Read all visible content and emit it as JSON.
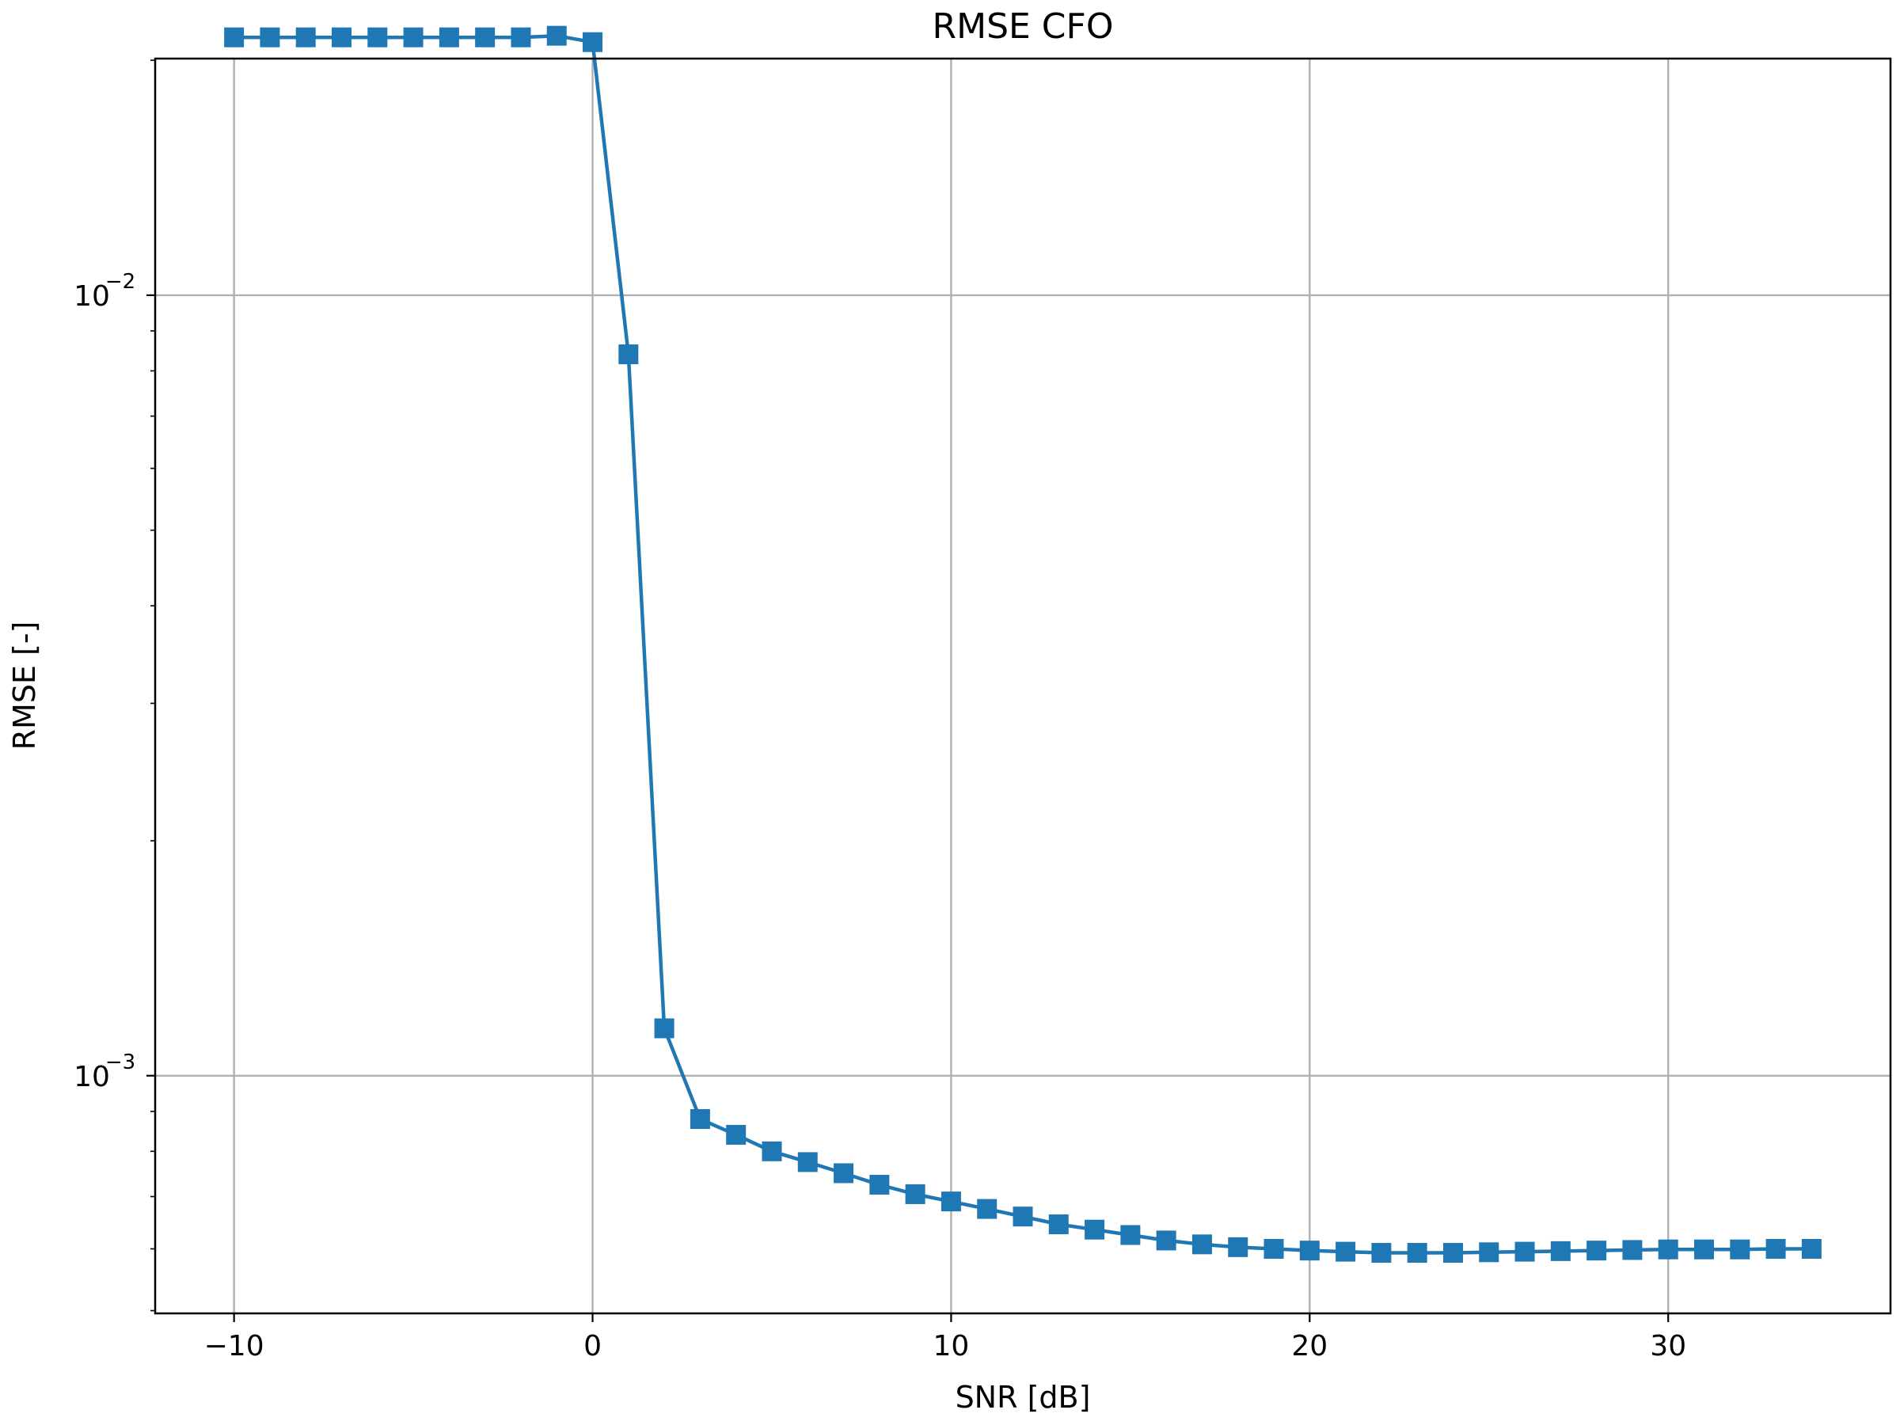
{
  "chart_data": {
    "type": "line",
    "title": "RMSE CFO",
    "xlabel": "SNR [dB]",
    "ylabel": "RMSE [-]",
    "x_scale": "linear",
    "y_scale": "log",
    "xlim": [
      -12.2,
      36.2
    ],
    "ylim": [
      0.000496,
      0.0201
    ],
    "grid": true,
    "x_ticks": [
      {
        "value": -10,
        "label": "−10"
      },
      {
        "value": 0,
        "label": "0"
      },
      {
        "value": 10,
        "label": "10"
      },
      {
        "value": 20,
        "label": "20"
      },
      {
        "value": 30,
        "label": "30"
      }
    ],
    "y_ticks": [
      {
        "value": 0.001,
        "base": "10",
        "exp": "−3"
      },
      {
        "value": 0.01,
        "base": "10",
        "exp": "−2"
      }
    ],
    "y_minor_ticks": [
      0.0005,
      0.0006,
      0.0007,
      0.0008,
      0.0009,
      0.002,
      0.003,
      0.004,
      0.005,
      0.006,
      0.007,
      0.008,
      0.009,
      0.02
    ],
    "color": "#1f77b4",
    "marker": "square",
    "series": [
      {
        "x": [
          -10,
          -9,
          -8,
          -7,
          -6,
          -5,
          -4,
          -3,
          -2,
          -1,
          0,
          1,
          2,
          3,
          4,
          5,
          6,
          7,
          8,
          9,
          10,
          11,
          12,
          13,
          14,
          15,
          16,
          17,
          18,
          19,
          20,
          21,
          22,
          23,
          24,
          25,
          26,
          27,
          28,
          29,
          30,
          31,
          32,
          33,
          34
        ],
        "y": [
          0.0214,
          0.0214,
          0.0214,
          0.0214,
          0.0214,
          0.0214,
          0.0214,
          0.0214,
          0.0214,
          0.0215,
          0.0211,
          0.0084,
          0.00115,
          0.00088,
          0.00084,
          0.0008,
          0.000775,
          0.00075,
          0.000725,
          0.000705,
          0.00069,
          0.000675,
          0.00066,
          0.000645,
          0.000635,
          0.000625,
          0.000615,
          0.000608,
          0.000603,
          0.0006,
          0.000597,
          0.000595,
          0.000593,
          0.000593,
          0.000593,
          0.000594,
          0.000595,
          0.000596,
          0.000597,
          0.000598,
          0.000599,
          0.000599,
          0.000599,
          0.0006,
          0.0006
        ]
      }
    ]
  }
}
